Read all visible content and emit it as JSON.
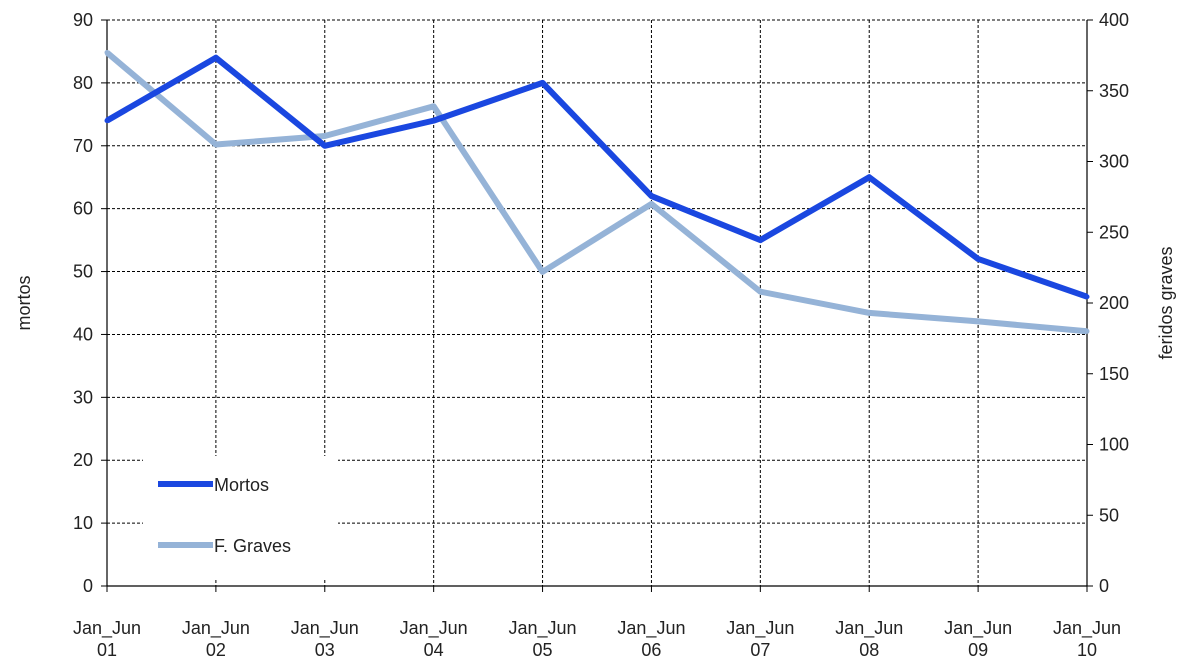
{
  "chart_data": {
    "type": "line",
    "categories": [
      [
        "Jan_Jun",
        "01"
      ],
      [
        "Jan_Jun",
        "02"
      ],
      [
        "Jan_Jun",
        "03"
      ],
      [
        "Jan_Jun",
        "04"
      ],
      [
        "Jan_Jun",
        "05"
      ],
      [
        "Jan_Jun",
        "06"
      ],
      [
        "Jan_Jun",
        "07"
      ],
      [
        "Jan_Jun",
        "08"
      ],
      [
        "Jan_Jun",
        "09"
      ],
      [
        "Jan_Jun",
        "10"
      ]
    ],
    "ylabel": "mortos",
    "y2label": "feridos graves",
    "ylim": [
      0,
      90
    ],
    "yticks": [
      0,
      10,
      20,
      30,
      40,
      50,
      60,
      70,
      80,
      90
    ],
    "y2lim": [
      0,
      400
    ],
    "y2ticks": [
      0,
      50,
      100,
      150,
      200,
      250,
      300,
      350,
      400
    ],
    "grid": true,
    "legend_position": "bottom-left",
    "series": [
      {
        "name": "Mortos",
        "axis": "left",
        "color": "#1a47e0",
        "values": [
          74,
          84,
          70,
          74,
          80,
          62,
          55,
          65,
          52,
          46
        ]
      },
      {
        "name": "F. Graves",
        "axis": "right",
        "color": "#95b3d7",
        "values": [
          377,
          312,
          318,
          339,
          222,
          270,
          208,
          193,
          187,
          180
        ]
      }
    ]
  }
}
